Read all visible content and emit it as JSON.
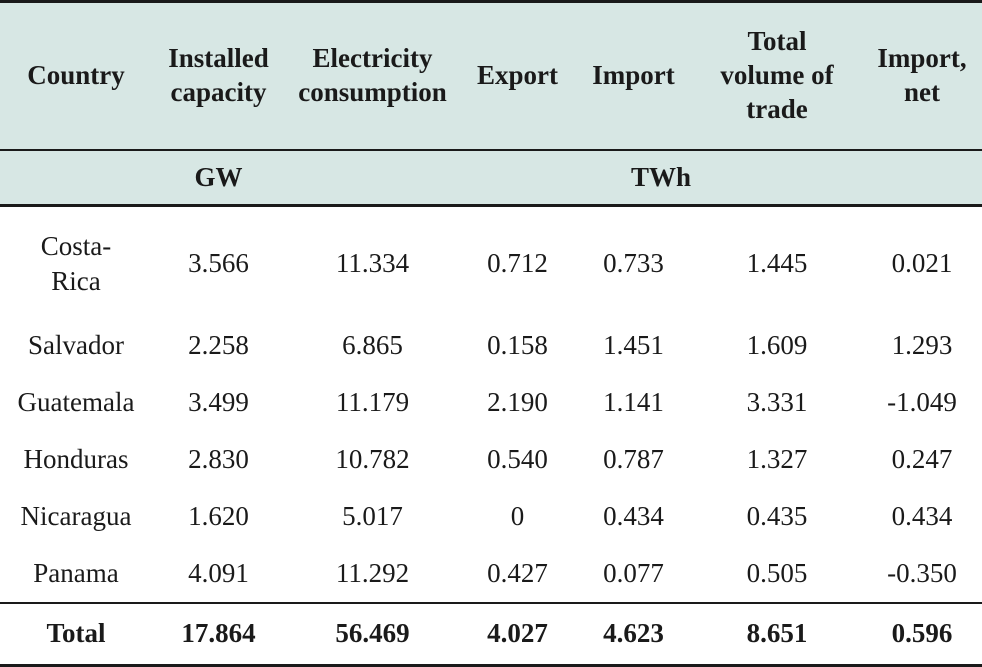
{
  "headers": {
    "country": "Country",
    "installed_capacity_1": "Installed",
    "installed_capacity_2": "capacity",
    "electricity_consumption_1": "Electricity",
    "electricity_consumption_2": "consumption",
    "export": "Export",
    "import": "Import",
    "total_volume_1": "Total",
    "total_volume_2": "volume of",
    "total_volume_3": "trade",
    "import_net_1": "Import,",
    "import_net_2": "net"
  },
  "units": {
    "gw": "GW",
    "twh": "TWh"
  },
  "rows": [
    {
      "country_1": "Costa-",
      "country_2": "Rica",
      "installed": "3.566",
      "consumption": "11.334",
      "export": "0.712",
      "import": "0.733",
      "total_trade": "1.445",
      "import_net": "0.021"
    },
    {
      "country": "Salvador",
      "installed": "2.258",
      "consumption": "6.865",
      "export": "0.158",
      "import": "1.451",
      "total_trade": "1.609",
      "import_net": "1.293"
    },
    {
      "country": "Guatemala",
      "installed": "3.499",
      "consumption": "11.179",
      "export": "2.190",
      "import": "1.141",
      "total_trade": "3.331",
      "import_net": "-1.049"
    },
    {
      "country": "Honduras",
      "installed": "2.830",
      "consumption": "10.782",
      "export": "0.540",
      "import": "0.787",
      "total_trade": "1.327",
      "import_net": "0.247"
    },
    {
      "country": "Nicaragua",
      "installed": "1.620",
      "consumption": "5.017",
      "export": "0",
      "import": "0.434",
      "total_trade": "0.435",
      "import_net": "0.434"
    },
    {
      "country": "Panama",
      "installed": "4.091",
      "consumption": "11.292",
      "export": "0.427",
      "import": "0.077",
      "total_trade": "0.505",
      "import_net": "-0.350"
    }
  ],
  "total": {
    "label": "Total",
    "installed": "17.864",
    "consumption": "56.469",
    "export": "4.027",
    "import": "4.623",
    "total_trade": "8.651",
    "import_net": "0.596"
  }
}
